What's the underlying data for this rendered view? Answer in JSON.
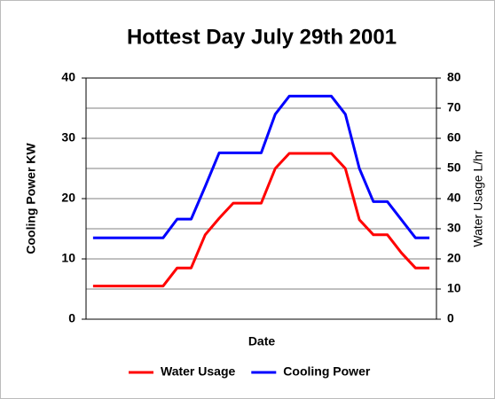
{
  "chart_data": {
    "type": "line",
    "title": "Hottest Day July 29th 2001",
    "x_label": "Date",
    "y_label": "Cooling Power KW",
    "y2_label": "Water Usage L/hr",
    "categories": [
      null,
      null,
      null,
      null,
      null,
      null,
      null,
      null,
      null,
      null,
      null,
      null,
      null,
      null,
      null,
      null,
      null,
      null,
      null,
      null,
      null,
      null,
      null,
      null,
      null
    ],
    "series": [
      {
        "name": "Water Usage",
        "color": "#ff0000",
        "axis": "y2",
        "values": [
          11,
          11,
          11,
          11,
          11,
          11,
          17,
          17,
          28,
          33.5,
          38.5,
          38.5,
          38.5,
          50,
          55,
          55,
          55,
          55,
          50,
          33,
          28,
          28,
          22,
          17,
          17
        ]
      },
      {
        "name": "Cooling Power",
        "color": "#0000ff",
        "values": [
          13.5,
          13.5,
          13.5,
          13.5,
          13.5,
          13.5,
          16.6,
          16.6,
          22,
          27.6,
          27.6,
          27.6,
          27.6,
          34,
          37,
          37,
          37,
          37,
          34,
          25,
          19.5,
          19.5,
          16.5,
          13.5,
          13.5
        ]
      }
    ],
    "ylim": [
      0,
      40
    ],
    "yticks": [
      0,
      10,
      20,
      30,
      40
    ],
    "y2lim": [
      0,
      80
    ],
    "y2ticks": [
      0,
      10,
      20,
      30,
      40,
      50,
      60,
      70,
      80
    ],
    "grid": true,
    "legend": "bottom"
  }
}
